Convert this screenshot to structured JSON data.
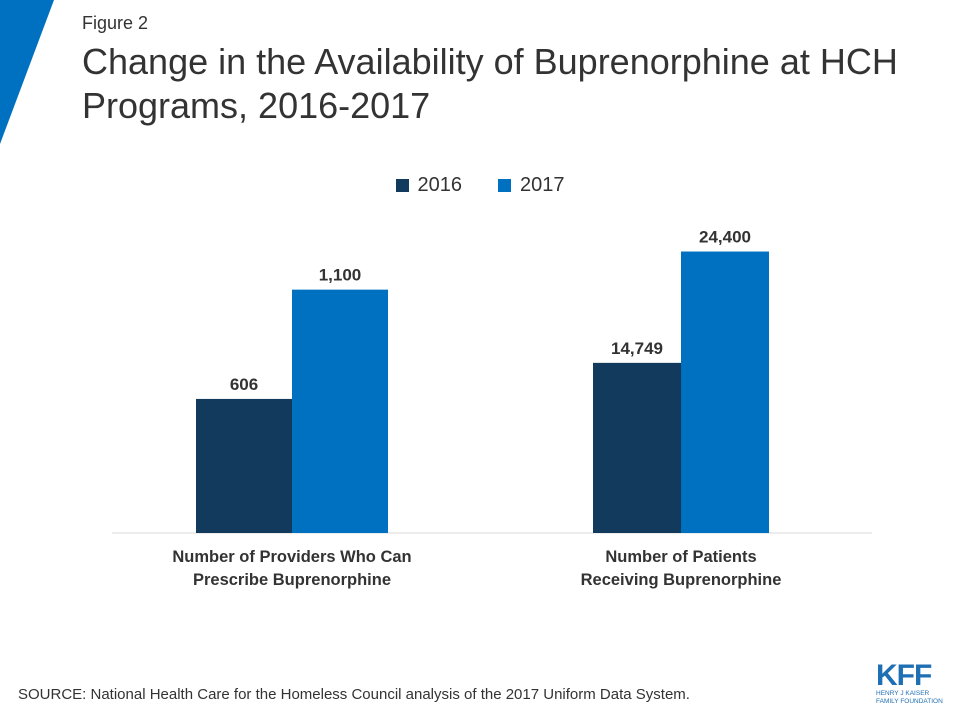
{
  "figure_label": "Figure 2",
  "title": "Change in the Availability of Buprenorphine at HCH Programs, 2016-2017",
  "source": "SOURCE: National Health Care for the Homeless Council analysis of the 2017 Uniform Data System.",
  "logo": {
    "letters": "KFF",
    "subtitle": "HENRY J KAISER\nFAMILY FOUNDATION"
  },
  "colors": {
    "series_2016": "#123a5c",
    "series_2017": "#0070c0",
    "accent": "#0070c0"
  },
  "chart_data": {
    "type": "bar",
    "title": "Change in the Availability of Buprenorphine at HCH Programs, 2016-2017",
    "xlabel": "",
    "ylabel": "",
    "categories": [
      [
        "Number of Providers Who Can",
        "Prescribe Buprenorphine"
      ],
      [
        "Number of Patients",
        "Receiving Buprenorphine"
      ]
    ],
    "series": [
      {
        "name": "2016",
        "values": [
          606,
          14749
        ],
        "labels": [
          "606",
          "14,749"
        ]
      },
      {
        "name": "2017",
        "values": [
          1100,
          24400
        ],
        "labels": [
          "1,100",
          "24,400"
        ]
      }
    ],
    "panel_ylims": [
      [
        0,
        1460
      ],
      [
        0,
        28000
      ]
    ],
    "grid": false,
    "legend": "top-center"
  }
}
